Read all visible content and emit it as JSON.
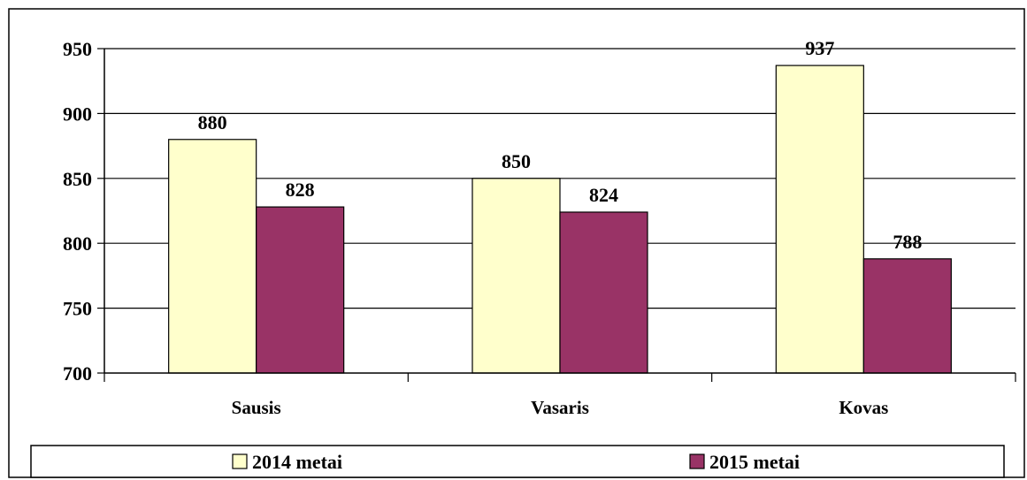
{
  "chart_data": {
    "type": "bar",
    "categories": [
      "Sausis",
      "Vasaris",
      "Kovas"
    ],
    "series": [
      {
        "name": "2014 metai",
        "values": [
          880,
          850,
          937
        ],
        "color": "#FFFFCC"
      },
      {
        "name": "2015 metai",
        "values": [
          828,
          824,
          788
        ],
        "color": "#993366"
      }
    ],
    "ylim": [
      700,
      950
    ],
    "yticks": [
      700,
      750,
      800,
      850,
      900,
      950
    ],
    "grid": true,
    "legend": "bottom",
    "data_labels": true
  }
}
